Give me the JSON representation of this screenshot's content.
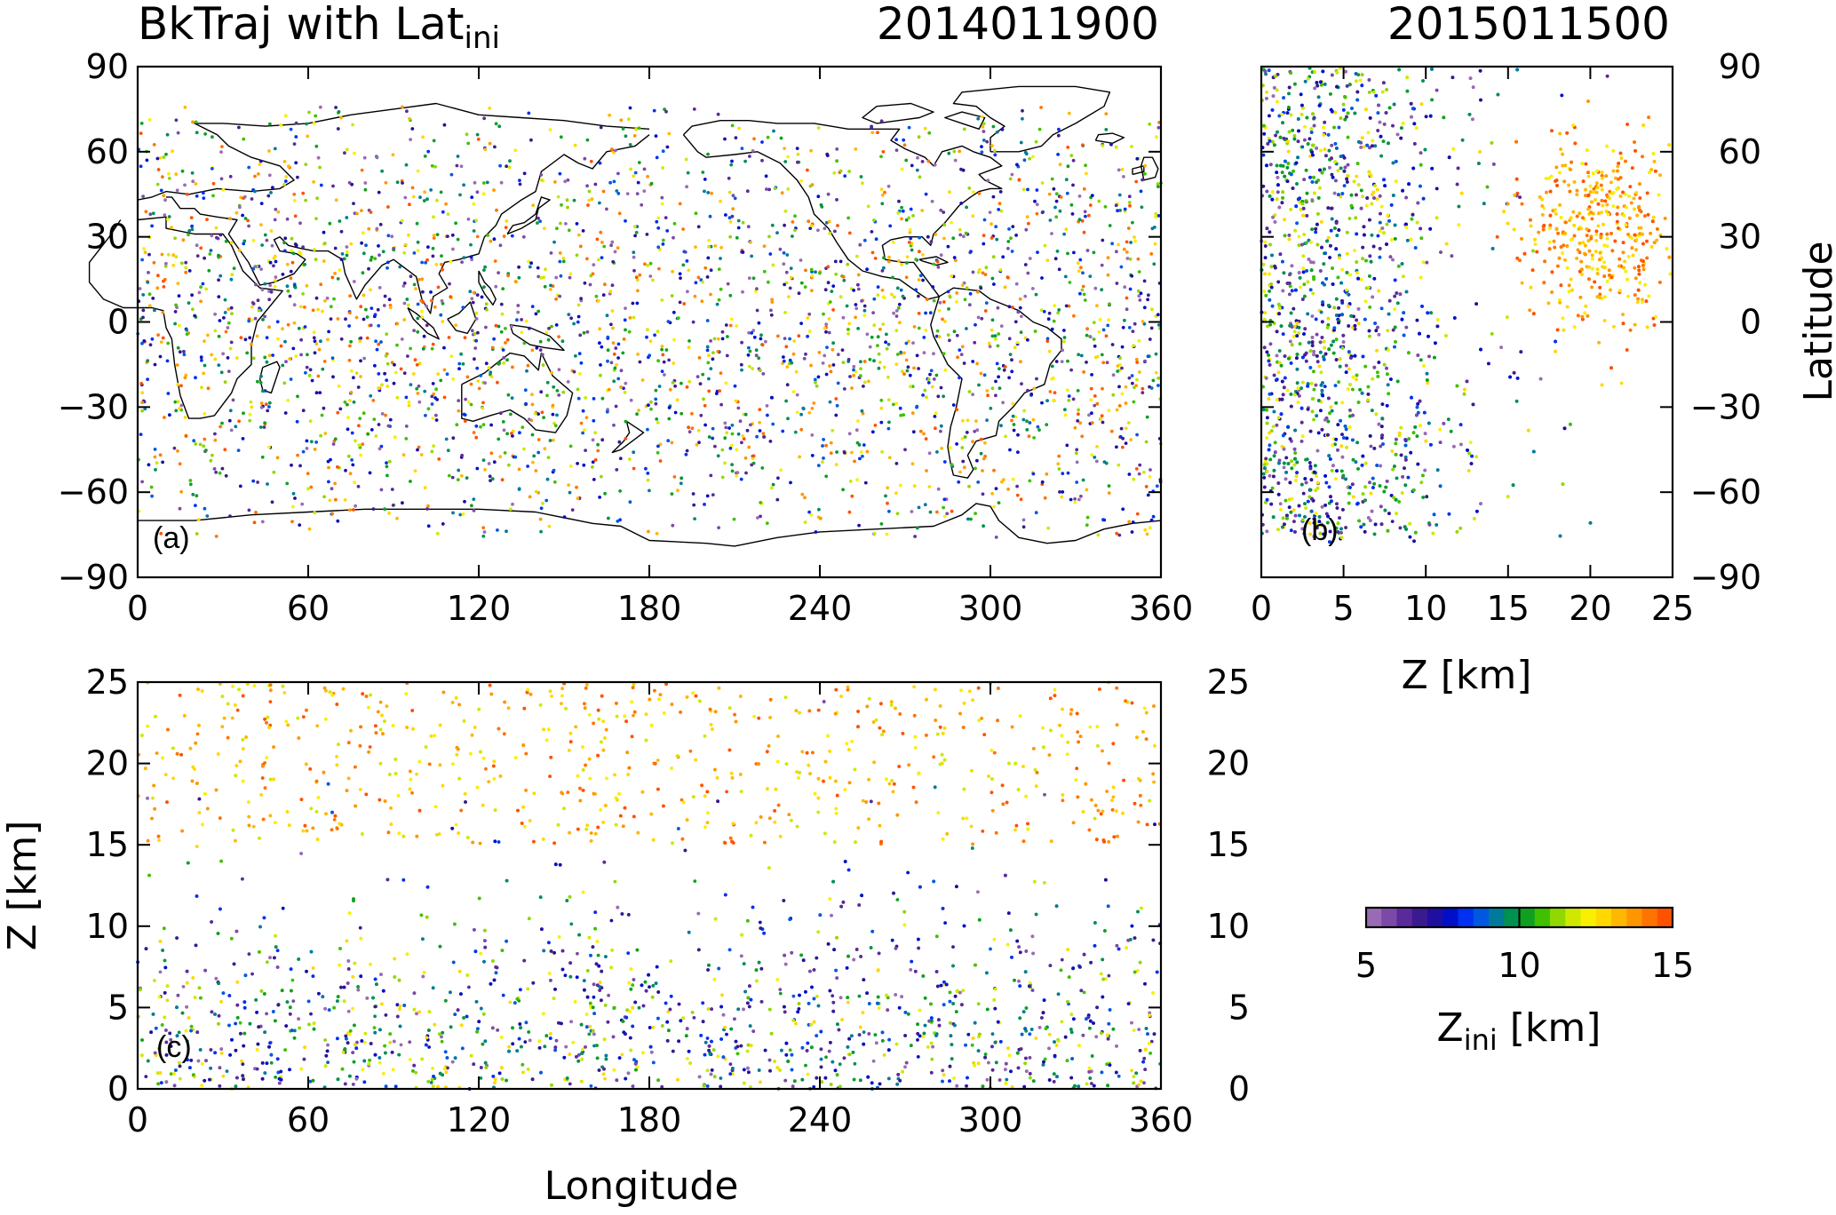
{
  "figure": {
    "title_left": "BkTraj with Lat",
    "title_left_sub": "ini",
    "date_left": "2014011900",
    "date_right": "2015011500"
  },
  "chart_data": [
    {
      "id": "a",
      "panel_label": "(a)",
      "type": "scatter",
      "xlabel": "",
      "ylabel": "",
      "xlim": [
        0,
        360
      ],
      "ylim": [
        -90,
        90
      ],
      "xticks": [
        0,
        60,
        120,
        180,
        240,
        300,
        360
      ],
      "yticks": [
        -90,
        -60,
        -30,
        0,
        30,
        60,
        90
      ],
      "background": "world coastline map",
      "points": "approx. 3000 trajectory end points spread nearly uniformly over the globe, colored by Z_ini",
      "n_points": 3000
    },
    {
      "id": "b",
      "panel_label": "(b)",
      "type": "scatter",
      "xlabel": "Z [km]",
      "ylabel": "Latitude",
      "xlim": [
        0,
        25
      ],
      "ylim": [
        -90,
        90
      ],
      "xticks": [
        0,
        5,
        10,
        15,
        20,
        25
      ],
      "yticks": [
        -90,
        -60,
        -30,
        0,
        30,
        60,
        90
      ],
      "points": "dense cloud below 10 km spanning -80 to 90 latitude; orange/red cluster at 15-25 km centred near 30 N",
      "n_points": 4200
    },
    {
      "id": "c",
      "panel_label": "(c)",
      "type": "scatter",
      "xlabel": "Longitude",
      "ylabel": "Z [km]",
      "xlim": [
        0,
        360
      ],
      "ylim": [
        0,
        25
      ],
      "xticks": [
        0,
        60,
        120,
        180,
        240,
        300,
        360
      ],
      "yticks": [
        0,
        5,
        10,
        15,
        20,
        25
      ],
      "points": "dense low-level points below 10 km, yellow/orange/red points between 15 and 25 km",
      "n_points": 3600
    }
  ],
  "colorbar": {
    "label": "Z",
    "label_sub": "ini",
    "unit": "[km]",
    "min": 5,
    "max": 15,
    "ticks": [
      5,
      10,
      15
    ],
    "colors": [
      "#9a6bb5",
      "#7b4aa6",
      "#5a2a9a",
      "#3a1a8f",
      "#1f0fa0",
      "#0010c8",
      "#0030f0",
      "#0058e0",
      "#007a9a",
      "#009050",
      "#10a020",
      "#40c000",
      "#90d800",
      "#d0e800",
      "#f8f000",
      "#ffd800",
      "#ffb800",
      "#ff9600",
      "#ff7400",
      "#ff5200"
    ]
  }
}
